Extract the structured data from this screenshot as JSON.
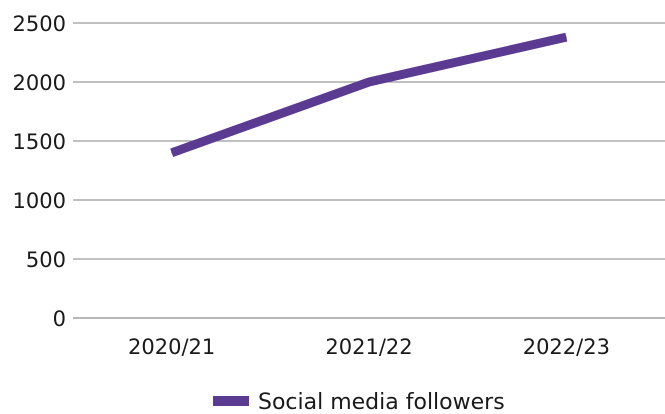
{
  "chart_data": {
    "type": "line",
    "categories": [
      "2020/21",
      "2021/22",
      "2022/23"
    ],
    "series": [
      {
        "name": "Social media followers",
        "values": [
          1400,
          2000,
          2380
        ],
        "color": "#5b3b92"
      }
    ],
    "title": "",
    "xlabel": "",
    "ylabel": "",
    "ylim": [
      0,
      2500
    ],
    "yticks": [
      0,
      500,
      1000,
      1500,
      2000,
      2500
    ],
    "grid": true,
    "legend_position": "bottom-center"
  }
}
